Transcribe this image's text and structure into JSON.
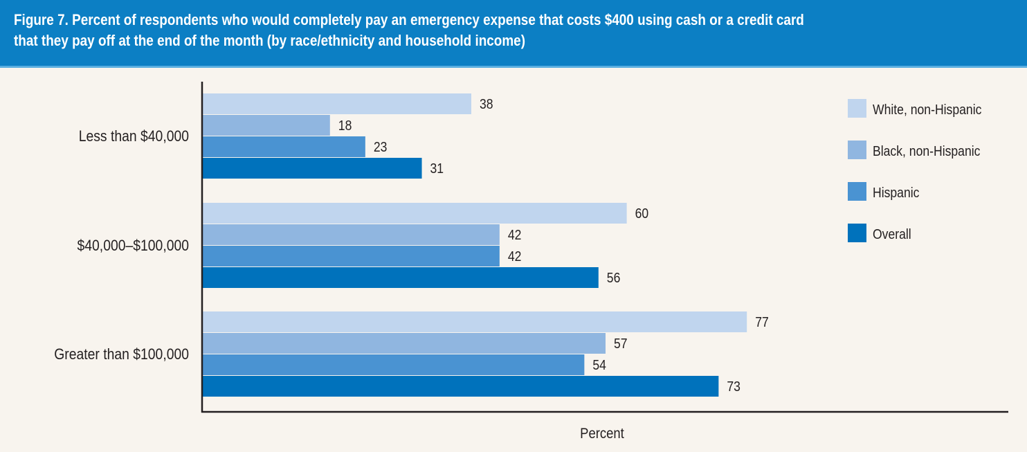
{
  "header": {
    "title": "Figure 7. Percent of respondents who would completely pay an emergency expense that costs $400 using cash or a credit card\nthat they pay off at the end of the month (by race/ethnicity and household income)"
  },
  "colors": {
    "header_bg": "#0c7fc4",
    "background": "#f8f4ee",
    "axis": "#231f20"
  },
  "chart_data": {
    "type": "bar",
    "orientation": "horizontal",
    "title": "Figure 7. Percent of respondents who would completely pay an emergency expense that costs $400 using cash or a credit card that they pay off at the end of the month (by race/ethnicity and household income)",
    "xlabel": "Percent",
    "ylabel": "",
    "categories": [
      "Less than $40,000",
      "$40,000–$100,000",
      "Greater than $100,000"
    ],
    "series": [
      {
        "name": "White, non-Hispanic",
        "color": "#c0d5ee",
        "values": [
          38,
          60,
          77
        ]
      },
      {
        "name": "Black, non-Hispanic",
        "color": "#90b6e0",
        "values": [
          18,
          42,
          57
        ]
      },
      {
        "name": "Hispanic",
        "color": "#4a93d2",
        "values": [
          23,
          42,
          54
        ]
      },
      {
        "name": "Overall",
        "color": "#0072bc",
        "values": [
          31,
          56,
          73
        ]
      }
    ],
    "xlim": [
      0,
      114
    ],
    "grid": false,
    "tick_labels_shown": false,
    "data_labels": true,
    "legend_position": "top-right"
  }
}
